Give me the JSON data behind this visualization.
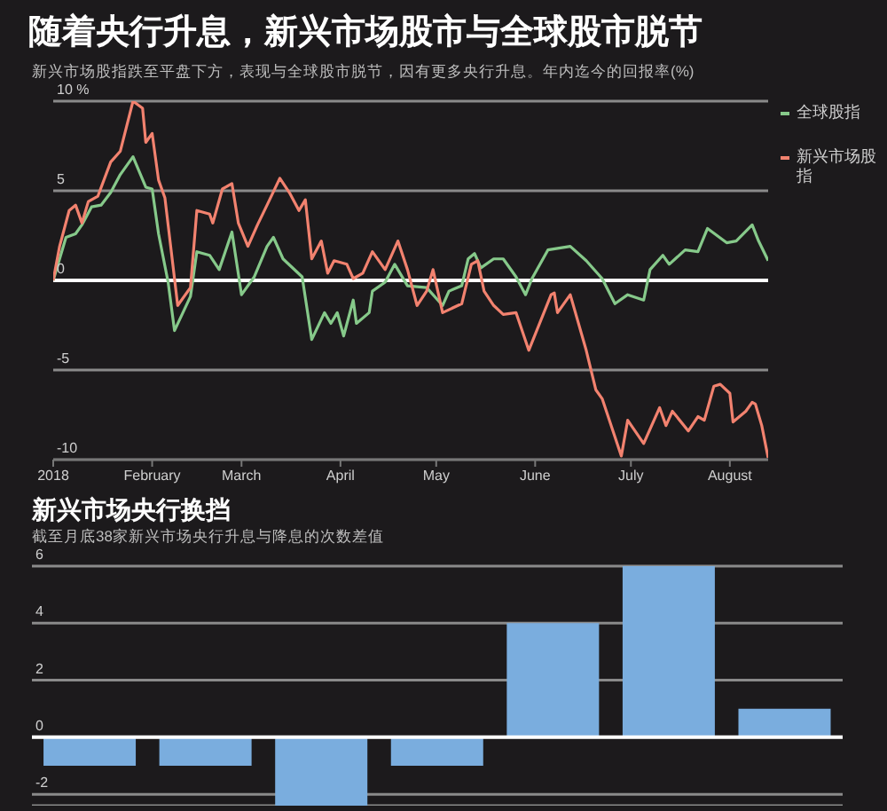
{
  "chart_data": [
    {
      "type": "line",
      "title": "随着央行升息，新兴市场股市与全球股市脱节",
      "subtitle": "新兴市场股指跌至平盘下方，表现与全球股市脱节，因有更多央行升息。年内迄今的回报率(%)",
      "xlim": [
        "2018-01-01",
        "2018-08-13"
      ],
      "xticks": [
        {
          "value": "2018-01-01",
          "label": "2018"
        },
        {
          "value": "2018-02-01",
          "label": "February"
        },
        {
          "value": "2018-03-01",
          "label": "March"
        },
        {
          "value": "2018-04-01",
          "label": "April"
        },
        {
          "value": "2018-05-01",
          "label": "May"
        },
        {
          "value": "2018-06-01",
          "label": "June"
        },
        {
          "value": "2018-07-01",
          "label": "July"
        },
        {
          "value": "2018-08-01",
          "label": "August"
        }
      ],
      "ylim": [
        -10,
        10
      ],
      "yticks": [
        {
          "value": 10,
          "label": "10 %"
        },
        5,
        0,
        -5,
        -10
      ],
      "grid": "y",
      "legend": "right",
      "marker": "none",
      "line_style": "solid",
      "ref_lines": [
        {
          "axis": "y",
          "value": 0,
          "color": "#ffffff"
        }
      ],
      "series": [
        {
          "name": "全球股指",
          "color": "#86c98a",
          "x": [
            "2018-01-01",
            "2018-01-05",
            "2018-01-08",
            "2018-01-10",
            "2018-01-13",
            "2018-01-16",
            "2018-01-19",
            "2018-01-22",
            "2018-01-26",
            "2018-01-30",
            "2018-02-01",
            "2018-02-03",
            "2018-02-06",
            "2018-02-08",
            "2018-02-13",
            "2018-02-15",
            "2018-02-19",
            "2018-02-22",
            "2018-02-26",
            "2018-03-01",
            "2018-03-05",
            "2018-03-09",
            "2018-03-11",
            "2018-03-14",
            "2018-03-20",
            "2018-03-23",
            "2018-03-27",
            "2018-03-29",
            "2018-03-31",
            "2018-04-02",
            "2018-04-05",
            "2018-04-06",
            "2018-04-10",
            "2018-04-11",
            "2018-04-15",
            "2018-04-18",
            "2018-04-22",
            "2018-04-28",
            "2018-05-03",
            "2018-05-05",
            "2018-05-09",
            "2018-05-11",
            "2018-05-13",
            "2018-05-15",
            "2018-05-19",
            "2018-05-22",
            "2018-05-26",
            "2018-05-29",
            "2018-05-31",
            "2018-06-05",
            "2018-06-12",
            "2018-06-17",
            "2018-06-22",
            "2018-06-26",
            "2018-06-30",
            "2018-07-05",
            "2018-07-07",
            "2018-07-11",
            "2018-07-13",
            "2018-07-18",
            "2018-07-22",
            "2018-07-25",
            "2018-07-31",
            "2018-08-03",
            "2018-08-08",
            "2018-08-10",
            "2018-08-13"
          ],
          "values": [
            0,
            2.4,
            2.6,
            3.1,
            4.1,
            4.2,
            4.9,
            5.9,
            6.9,
            5.2,
            5.1,
            2.6,
            -0.1,
            -2.8,
            -0.9,
            1.6,
            1.4,
            0.6,
            2.7,
            -0.8,
            0.2,
            1.9,
            2.4,
            1.2,
            0.2,
            -3.3,
            -1.8,
            -2.4,
            -1.8,
            -3.1,
            -1.1,
            -2.4,
            -1.8,
            -0.6,
            -0.1,
            0.9,
            -0.3,
            -0.4,
            -1.4,
            -0.6,
            -0.3,
            1.2,
            1.5,
            0.7,
            1.2,
            1.2,
            0.2,
            -0.8,
            0.1,
            1.7,
            1.9,
            1.1,
            0.1,
            -1.3,
            -0.8,
            -1.1,
            0.6,
            1.4,
            0.9,
            1.7,
            1.6,
            2.9,
            2.1,
            2.2,
            3.1,
            2.2,
            1.1
          ]
        },
        {
          "name": "新兴市场股指",
          "color": "#f2826f",
          "x": [
            "2018-01-01",
            "2018-01-03",
            "2018-01-06",
            "2018-01-08",
            "2018-01-10",
            "2018-01-12",
            "2018-01-15",
            "2018-01-19",
            "2018-01-22",
            "2018-01-24",
            "2018-01-26",
            "2018-01-29",
            "2018-01-30",
            "2018-02-01",
            "2018-02-03",
            "2018-02-05",
            "2018-02-07",
            "2018-02-09",
            "2018-02-13",
            "2018-02-15",
            "2018-02-19",
            "2018-02-20",
            "2018-02-23",
            "2018-02-26",
            "2018-02-28",
            "2018-03-03",
            "2018-03-06",
            "2018-03-09",
            "2018-03-13",
            "2018-03-16",
            "2018-03-19",
            "2018-03-21",
            "2018-03-23",
            "2018-03-26",
            "2018-03-28",
            "2018-03-30",
            "2018-04-03",
            "2018-04-05",
            "2018-04-08",
            "2018-04-11",
            "2018-04-15",
            "2018-04-19",
            "2018-04-22",
            "2018-04-25",
            "2018-04-28",
            "2018-04-30",
            "2018-05-03",
            "2018-05-09",
            "2018-05-12",
            "2018-05-14",
            "2018-05-16",
            "2018-05-19",
            "2018-05-22",
            "2018-05-26",
            "2018-05-30",
            "2018-06-06",
            "2018-06-07",
            "2018-06-08",
            "2018-06-12",
            "2018-06-17",
            "2018-06-20",
            "2018-06-22",
            "2018-06-28",
            "2018-06-30",
            "2018-07-05",
            "2018-07-10",
            "2018-07-12",
            "2018-07-14",
            "2018-07-19",
            "2018-07-22",
            "2018-07-24",
            "2018-07-27",
            "2018-07-29",
            "2018-08-01",
            "2018-08-02",
            "2018-08-06",
            "2018-08-08",
            "2018-08-09",
            "2018-08-11",
            "2018-08-13"
          ],
          "values": [
            0,
            1.9,
            3.9,
            4.2,
            3.2,
            4.4,
            4.7,
            6.6,
            7.2,
            8.6,
            10.0,
            9.6,
            7.7,
            8.2,
            5.6,
            4.6,
            1.6,
            -1.4,
            -0.4,
            3.9,
            3.7,
            3.2,
            5.1,
            5.4,
            3.2,
            1.9,
            3.1,
            4.2,
            5.7,
            4.9,
            3.9,
            4.5,
            1.2,
            2.2,
            0.4,
            1.1,
            0.9,
            0.1,
            0.4,
            1.6,
            0.6,
            2.2,
            0.6,
            -1.4,
            -0.6,
            0.6,
            -1.8,
            -1.3,
            0.9,
            1.1,
            -0.6,
            -1.4,
            -1.9,
            -1.8,
            -3.9,
            -0.8,
            -0.7,
            -1.8,
            -0.8,
            -3.9,
            -6.1,
            -6.6,
            -9.8,
            -7.8,
            -9.1,
            -7.1,
            -8.1,
            -7.3,
            -8.4,
            -7.6,
            -7.8,
            -5.9,
            -5.8,
            -6.3,
            -7.9,
            -7.3,
            -6.8,
            -6.9,
            -8.1,
            -9.9
          ]
        }
      ]
    },
    {
      "type": "bar",
      "title": "新兴市场央行换挡",
      "subtitle": "截至月底38家新兴市场央行升息与降息的次数差值",
      "categories": [
        null,
        null,
        null,
        null,
        null,
        null,
        null
      ],
      "values": [
        -1,
        -1,
        -2.4,
        -1,
        4,
        6,
        1
      ],
      "color": "#7aadde",
      "ylim": [
        -2.4,
        6
      ],
      "yticks": [
        -2,
        0,
        2,
        4,
        6
      ],
      "grid": "y",
      "tick_labels": "y",
      "ref_lines": [
        {
          "axis": "y",
          "value": 0,
          "color": "#ffffff"
        }
      ]
    }
  ]
}
